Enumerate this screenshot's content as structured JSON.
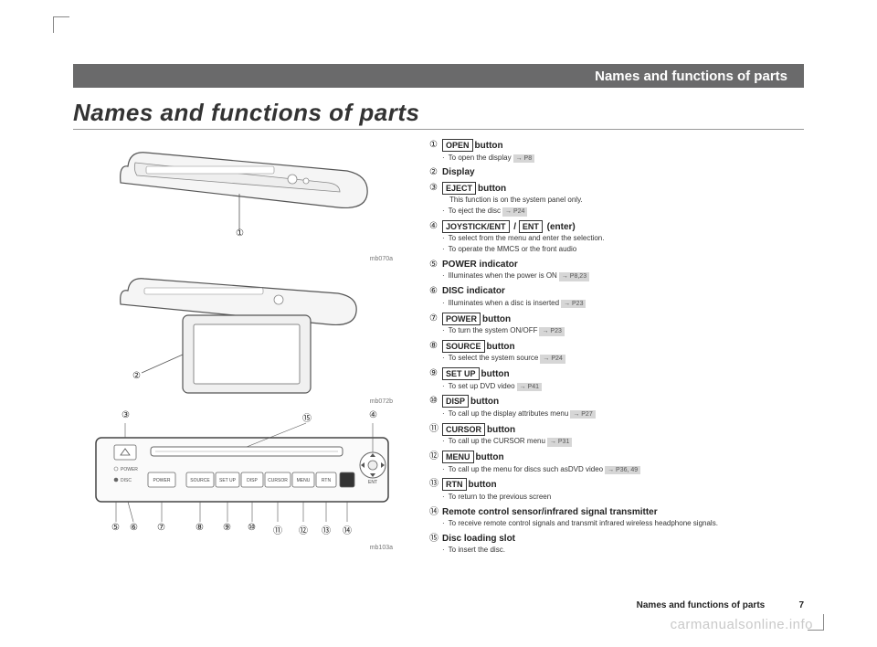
{
  "header": {
    "title": "Names and functions of parts"
  },
  "pageTitle": "Names and functions of parts",
  "footer": {
    "title": "Names and functions of parts",
    "page": "7"
  },
  "watermark": "carmanualsonline.info",
  "figLabels": {
    "a": "mb070a",
    "b": "mb072b",
    "c": "mb103a"
  },
  "circled": [
    "①",
    "②",
    "③",
    "④",
    "⑤",
    "⑥",
    "⑦",
    "⑧",
    "⑨",
    "⑩",
    "⑪",
    "⑫",
    "⑬",
    "⑭",
    "⑮"
  ],
  "panelButtons": [
    "POWER",
    "SOURCE",
    "SET UP",
    "DISP",
    "CURSOR",
    "MENU",
    "RTN"
  ],
  "panelLeds": {
    "power": "POWER",
    "disc": "DISC"
  },
  "ent": "ENT",
  "items": [
    {
      "n": "①",
      "box": "OPEN",
      "label": "button",
      "subs": [
        {
          "t": "To open the display",
          "ref": "→ P8"
        }
      ]
    },
    {
      "n": "②",
      "label": "Display",
      "subs": []
    },
    {
      "n": "③",
      "box": "EJECT",
      "label": "button",
      "subs": [
        {
          "t": "This function is on the system panel only.",
          "plain": true
        },
        {
          "t": "To eject the disc",
          "ref": "→ P24"
        }
      ]
    },
    {
      "n": "④",
      "box": "JOYSTICK/ENT",
      "extra": " / ",
      "box2": "ENT",
      "label": "(enter)",
      "subs": [
        {
          "t": "To select from the menu and enter the selection."
        },
        {
          "t": "To operate the MMCS or the front audio"
        }
      ]
    },
    {
      "n": "⑤",
      "label": "POWER indicator",
      "subs": [
        {
          "t": "Illuminates when the power is ON",
          "ref": "→ P8,23"
        }
      ]
    },
    {
      "n": "⑥",
      "label": "DISC indicator",
      "subs": [
        {
          "t": "Illuminates when a disc is inserted",
          "ref": "→ P23"
        }
      ]
    },
    {
      "n": "⑦",
      "box": "POWER",
      "label": "button",
      "subs": [
        {
          "t": "To turn the system ON/OFF",
          "ref": "→ P23"
        }
      ]
    },
    {
      "n": "⑧",
      "box": "SOURCE",
      "label": "button",
      "subs": [
        {
          "t": "To select the system source",
          "ref": "→ P24"
        }
      ]
    },
    {
      "n": "⑨",
      "box": "SET UP",
      "label": "button",
      "subs": [
        {
          "t": "To set up DVD video",
          "ref": "→ P41"
        }
      ]
    },
    {
      "n": "⑩",
      "box": "DISP",
      "label": "button",
      "subs": [
        {
          "t": "To call up the display attributes menu",
          "ref": "→ P27"
        }
      ]
    },
    {
      "n": "⑪",
      "box": "CURSOR",
      "label": "button",
      "subs": [
        {
          "t": "To call up the CURSOR menu",
          "ref": "→ P31"
        }
      ]
    },
    {
      "n": "⑫",
      "box": "MENU",
      "label": "button",
      "subs": [
        {
          "t": "To call up the menu for discs such asDVD video",
          "ref": "→ P36, 49"
        }
      ]
    },
    {
      "n": "⑬",
      "box": "RTN",
      "label": "button",
      "subs": [
        {
          "t": "To return to the previous screen"
        }
      ]
    },
    {
      "n": "⑭",
      "label": "Remote control sensor/infrared  signal transmitter",
      "subs": [
        {
          "t": "To receive remote control signals and transmit   infrared wireless headphone signals."
        }
      ]
    },
    {
      "n": "⑮",
      "label": "Disc loading slot",
      "subs": [
        {
          "t": "To insert the disc."
        }
      ]
    }
  ]
}
